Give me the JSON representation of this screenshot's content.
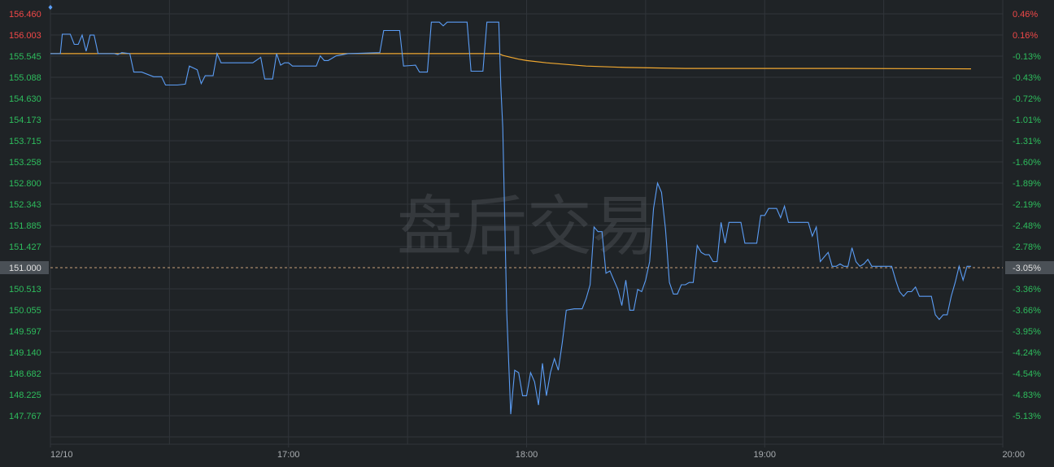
{
  "watermark": "盘后交易",
  "colors": {
    "background": "#1f2326",
    "grid": "#30353a",
    "price_line": "#5b9df5",
    "avg_line": "#f0a830",
    "up_label": "#f04848",
    "down_label": "#2ebd5d",
    "ref_line": "#c8a27a",
    "ref_tag_bg": "#4a5056",
    "ref_tag_text": "#e0e0e0"
  },
  "chart_data": {
    "type": "line",
    "x_ticks": [
      "12/10",
      "17:00",
      "18:00",
      "19:00",
      "20:00"
    ],
    "price_ticks": [
      "156.460",
      "156.003",
      "155.545",
      "155.088",
      "154.630",
      "154.173",
      "153.715",
      "153.258",
      "152.800",
      "152.343",
      "151.885",
      "151.427",
      "151.000",
      "150.513",
      "150.055",
      "149.597",
      "149.140",
      "148.682",
      "148.225",
      "147.767"
    ],
    "pct_ticks": [
      "0.46%",
      "0.16%",
      "-0.13%",
      "-0.43%",
      "-0.72%",
      "-1.01%",
      "-1.31%",
      "-1.60%",
      "-1.89%",
      "-2.19%",
      "-2.48%",
      "-2.78%",
      "-3.05%",
      "-3.36%",
      "-3.66%",
      "-3.95%",
      "-4.24%",
      "-4.54%",
      "-4.83%",
      "-5.13%"
    ],
    "up_tick_count": 2,
    "highlight_index": 12,
    "ylim": [
      147.767,
      156.46
    ],
    "x_range_minutes": [
      0,
      240
    ],
    "price_series": {
      "name": "",
      "points": [
        [
          0,
          155.6
        ],
        [
          2.5,
          155.6
        ],
        [
          3,
          156.02
        ],
        [
          5,
          156.02
        ],
        [
          6,
          155.8
        ],
        [
          7,
          155.8
        ],
        [
          8,
          156.0
        ],
        [
          9,
          155.65
        ],
        [
          10,
          156.0
        ],
        [
          11,
          156.0
        ],
        [
          12,
          155.6
        ],
        [
          16,
          155.6
        ],
        [
          17,
          155.58
        ],
        [
          18,
          155.62
        ],
        [
          20,
          155.6
        ],
        [
          21,
          155.2
        ],
        [
          23,
          155.2
        ],
        [
          26,
          155.1
        ],
        [
          28,
          155.1
        ],
        [
          29,
          154.92
        ],
        [
          32,
          154.92
        ],
        [
          34,
          154.94
        ],
        [
          35,
          155.33
        ],
        [
          37,
          155.25
        ],
        [
          38,
          154.95
        ],
        [
          39,
          155.12
        ],
        [
          41,
          155.12
        ],
        [
          42,
          155.6
        ],
        [
          43,
          155.4
        ],
        [
          51,
          155.4
        ],
        [
          53,
          155.52
        ],
        [
          54,
          155.05
        ],
        [
          56,
          155.05
        ],
        [
          57,
          155.6
        ],
        [
          58,
          155.35
        ],
        [
          59,
          155.4
        ],
        [
          60,
          155.4
        ],
        [
          61,
          155.33
        ],
        [
          67,
          155.33
        ],
        [
          68,
          155.55
        ],
        [
          69,
          155.45
        ],
        [
          70,
          155.45
        ],
        [
          72,
          155.55
        ],
        [
          75,
          155.6
        ],
        [
          83,
          155.62
        ],
        [
          84,
          156.1
        ],
        [
          88,
          156.1
        ],
        [
          89,
          155.33
        ],
        [
          92,
          155.35
        ],
        [
          93,
          155.2
        ],
        [
          95,
          155.2
        ],
        [
          96,
          156.28
        ],
        [
          98,
          156.28
        ],
        [
          99,
          156.2
        ],
        [
          100,
          156.28
        ],
        [
          105,
          156.28
        ],
        [
          106,
          155.22
        ],
        [
          109,
          155.22
        ],
        [
          110,
          156.28
        ],
        [
          113,
          156.28
        ],
        [
          113.5,
          154.9
        ],
        [
          114,
          154.0
        ],
        [
          115,
          150.0
        ],
        [
          116,
          147.8
        ],
        [
          117,
          148.75
        ],
        [
          118,
          148.7
        ],
        [
          119,
          148.2
        ],
        [
          120,
          148.2
        ],
        [
          121,
          148.7
        ],
        [
          122,
          148.5
        ],
        [
          123,
          148.0
        ],
        [
          124,
          148.9
        ],
        [
          125,
          148.2
        ],
        [
          126,
          148.7
        ],
        [
          127,
          149.0
        ],
        [
          128,
          148.75
        ],
        [
          129,
          149.35
        ],
        [
          130,
          150.05
        ],
        [
          132,
          150.08
        ],
        [
          134,
          150.08
        ],
        [
          135,
          150.3
        ],
        [
          136,
          150.6
        ],
        [
          137,
          151.85
        ],
        [
          138,
          151.75
        ],
        [
          139,
          151.75
        ],
        [
          140,
          150.85
        ],
        [
          141,
          150.9
        ],
        [
          142,
          150.7
        ],
        [
          143,
          150.5
        ],
        [
          144,
          150.15
        ],
        [
          145,
          150.7
        ],
        [
          146,
          150.05
        ],
        [
          147,
          150.05
        ],
        [
          148,
          150.5
        ],
        [
          149,
          150.45
        ],
        [
          150,
          150.7
        ],
        [
          151,
          151.1
        ],
        [
          152,
          152.25
        ],
        [
          153,
          152.8
        ],
        [
          154,
          152.6
        ],
        [
          155,
          151.8
        ],
        [
          156,
          150.65
        ],
        [
          157,
          150.4
        ],
        [
          158,
          150.4
        ],
        [
          159,
          150.6
        ],
        [
          160,
          150.6
        ],
        [
          161,
          150.65
        ],
        [
          162,
          150.65
        ],
        [
          163,
          151.45
        ],
        [
          164,
          151.3
        ],
        [
          165,
          151.25
        ],
        [
          166,
          151.25
        ],
        [
          167,
          151.1
        ],
        [
          168,
          151.1
        ],
        [
          169,
          151.95
        ],
        [
          170,
          151.5
        ],
        [
          171,
          151.95
        ],
        [
          174,
          151.95
        ],
        [
          175,
          151.5
        ],
        [
          178,
          151.5
        ],
        [
          179,
          152.1
        ],
        [
          180,
          152.1
        ],
        [
          181,
          152.25
        ],
        [
          183,
          152.25
        ],
        [
          184,
          152.05
        ],
        [
          185,
          152.3
        ],
        [
          186,
          151.95
        ],
        [
          191,
          151.95
        ],
        [
          192,
          151.65
        ],
        [
          193,
          151.85
        ],
        [
          194,
          151.1
        ],
        [
          195,
          151.2
        ],
        [
          196,
          151.3
        ],
        [
          197,
          151.0
        ],
        [
          198,
          151.0
        ],
        [
          199,
          151.05
        ],
        [
          200,
          151.0
        ],
        [
          201,
          151.0
        ],
        [
          202,
          151.4
        ],
        [
          203,
          151.1
        ],
        [
          204,
          151.0
        ],
        [
          205,
          151.05
        ],
        [
          206,
          151.15
        ],
        [
          207,
          151.0
        ],
        [
          212,
          151.0
        ],
        [
          213,
          150.7
        ],
        [
          214,
          150.45
        ],
        [
          215,
          150.35
        ],
        [
          216,
          150.45
        ],
        [
          217,
          150.45
        ],
        [
          218,
          150.55
        ],
        [
          219,
          150.35
        ],
        [
          222,
          150.35
        ],
        [
          223,
          149.95
        ],
        [
          224,
          149.85
        ],
        [
          225,
          149.95
        ],
        [
          226,
          149.95
        ],
        [
          227,
          150.35
        ],
        [
          228,
          150.65
        ],
        [
          229,
          151.0
        ],
        [
          230,
          150.7
        ],
        [
          231,
          151.0
        ],
        [
          232,
          151.0
        ]
      ]
    },
    "avg_series": {
      "name": "",
      "points": [
        [
          0,
          155.6
        ],
        [
          113,
          155.6
        ],
        [
          114,
          155.56
        ],
        [
          116,
          155.52
        ],
        [
          118,
          155.48
        ],
        [
          120,
          155.45
        ],
        [
          125,
          155.4
        ],
        [
          135,
          155.33
        ],
        [
          145,
          155.3
        ],
        [
          160,
          155.28
        ],
        [
          200,
          155.28
        ],
        [
          232,
          155.27
        ]
      ]
    }
  }
}
